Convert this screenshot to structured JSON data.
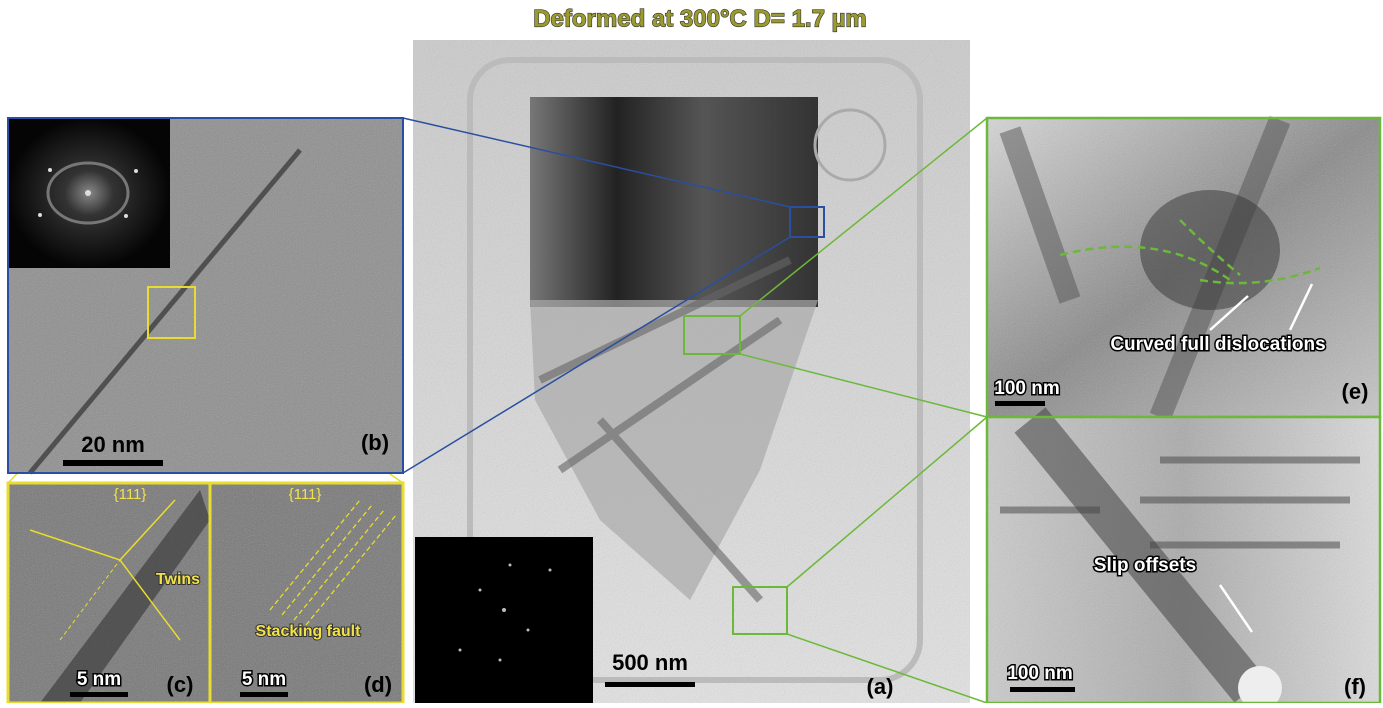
{
  "title": "Deformed at 300°C D= 1.7 µm",
  "panels": [
    {
      "label": "(a)",
      "scale_bar": "500 nm",
      "annotations": []
    },
    {
      "label": "(b)",
      "scale_bar": "20 nm",
      "annotations": []
    },
    {
      "label": "(c)",
      "scale_bar": "5 nm",
      "annotations": [
        "{111}",
        "Twins"
      ]
    },
    {
      "label": "(d)",
      "scale_bar": "5 nm",
      "annotations": [
        "{111}",
        "Stacking fault"
      ]
    },
    {
      "label": "(e)",
      "scale_bar": "100 nm",
      "annotations": [
        "Curved full dislocations"
      ]
    },
    {
      "label": "(f)",
      "scale_bar": "100 nm",
      "annotations": [
        "Slip offsets"
      ]
    }
  ]
}
